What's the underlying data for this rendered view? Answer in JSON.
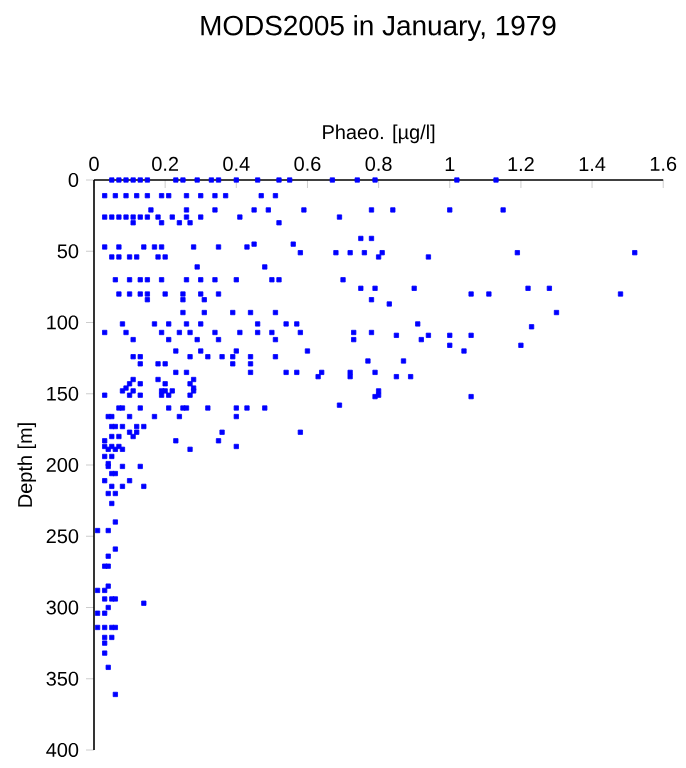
{
  "chart_data": {
    "type": "scatter",
    "title": "MODS2005 in January, 1979",
    "xlabel": "Phaeo. [µg/l]",
    "ylabel": "Depth [m]",
    "xlim": [
      0,
      1.6
    ],
    "ylim": [
      400,
      0
    ],
    "xticks": [
      0,
      0.2,
      0.4,
      0.6,
      0.8,
      1,
      1.2,
      1.4,
      1.6
    ],
    "yticks": [
      0,
      50,
      100,
      150,
      200,
      250,
      300,
      350,
      400
    ],
    "marker": "square",
    "color": "#0000ff",
    "x": [
      0.05,
      0.07,
      0.09,
      0.11,
      0.13,
      0.15,
      0.23,
      0.25,
      0.29,
      0.33,
      0.35,
      0.4,
      0.46,
      0.52,
      0.55,
      0.67,
      0.74,
      0.79,
      1.02,
      1.13,
      0.03,
      0.06,
      0.09,
      0.12,
      0.15,
      0.19,
      0.21,
      0.26,
      0.3,
      0.34,
      0.37,
      0.47,
      0.51,
      0.16,
      0.26,
      0.34,
      0.45,
      0.49,
      0.59,
      0.78,
      0.84,
      1.0,
      1.15,
      0.03,
      0.05,
      0.07,
      0.09,
      0.11,
      0.13,
      0.15,
      0.18,
      0.22,
      0.26,
      0.3,
      0.41,
      0.69,
      0.11,
      0.19,
      0.24,
      0.27,
      0.52,
      0.75,
      0.78,
      0.45,
      0.56,
      0.03,
      0.07,
      0.14,
      0.17,
      0.19,
      0.28,
      0.35,
      0.43,
      0.58,
      0.68,
      0.72,
      0.76,
      0.81,
      1.19,
      1.52,
      0.05,
      0.07,
      0.1,
      0.12,
      0.18,
      0.2,
      0.8,
      0.94,
      0.29,
      0.48,
      0.06,
      0.1,
      0.13,
      0.15,
      0.19,
      0.26,
      0.3,
      0.34,
      0.4,
      0.5,
      0.52,
      0.7,
      0.75,
      0.79,
      0.9,
      1.22,
      1.28,
      0.07,
      0.1,
      0.13,
      0.15,
      0.2,
      0.25,
      0.3,
      0.35,
      1.06,
      1.11,
      1.48,
      0.15,
      0.25,
      0.31,
      0.78,
      0.83,
      0.25,
      0.31,
      0.39,
      0.44,
      0.51,
      1.3,
      0.08,
      0.17,
      0.21,
      0.26,
      0.3,
      0.46,
      0.54,
      0.57,
      0.91,
      1.23,
      0.03,
      0.09,
      0.19,
      0.24,
      0.27,
      0.34,
      0.41,
      0.46,
      0.5,
      0.58,
      0.73,
      0.78,
      0.85,
      0.94,
      1.0,
      1.06,
      0.11,
      0.21,
      0.29,
      0.35,
      0.51,
      0.73,
      0.92,
      1.0,
      1.2,
      0.23,
      0.3,
      0.4,
      0.6,
      1.04,
      0.11,
      0.13,
      0.27,
      0.32,
      0.36,
      0.39,
      0.44,
      0.51,
      0.77,
      0.87,
      0.13,
      0.18,
      0.2,
      0.39,
      0.44,
      0.23,
      0.26,
      0.44,
      0.54,
      0.57,
      0.64,
      0.72,
      0.79,
      0.63,
      0.72,
      0.85,
      0.89,
      0.11,
      0.18,
      0.28,
      0.08,
      0.11,
      0.19,
      0.2,
      0.22,
      0.28,
      0.8,
      0.79,
      1.06,
      0.1,
      0.13,
      0.2,
      0.27,
      0.09,
      0.28,
      0.03,
      0.1,
      0.13,
      0.19,
      0.21,
      0.27,
      0.8,
      0.69,
      0.07,
      0.08,
      0.13,
      0.21,
      0.25,
      0.26,
      0.32,
      0.4,
      0.43,
      0.48,
      0.04,
      0.05,
      0.1,
      0.17,
      0.24,
      0.4,
      0.05,
      0.06,
      0.08,
      0.12,
      0.14,
      0.1,
      0.12,
      0.36,
      0.58,
      0.05,
      0.07,
      0.11,
      0.03,
      0.23,
      0.35,
      0.03,
      0.05,
      0.07,
      0.4,
      0.04,
      0.06,
      0.08,
      0.27,
      0.03,
      0.05,
      0.04,
      0.04,
      0.08,
      0.13,
      0.05,
      0.06,
      0.03,
      0.1,
      0.05,
      0.08,
      0.14,
      0.04,
      0.06,
      0.05,
      0.06,
      0.01,
      0.04,
      0.06,
      0.04,
      0.03,
      0.04,
      0.04,
      0.01,
      0.03,
      0.03,
      0.05,
      0.06,
      0.14,
      0.04,
      0.01,
      0.03,
      0.01,
      0.03,
      0.05,
      0.06,
      0.03,
      0.05,
      0.03,
      0.03,
      0.04,
      0.06
    ],
    "values": [
      0,
      0,
      0,
      0,
      0,
      0,
      0,
      0,
      0,
      0,
      0,
      0,
      0,
      0,
      0,
      0,
      0,
      0,
      0,
      0,
      11,
      11,
      11,
      11,
      11,
      11,
      11,
      11,
      11,
      11,
      11,
      11,
      11,
      21,
      21,
      21,
      21,
      21,
      21,
      21,
      21,
      21,
      21,
      26,
      26,
      26,
      26,
      26,
      26,
      26,
      26,
      26,
      26,
      26,
      26,
      26,
      30,
      30,
      30,
      30,
      30,
      41,
      41,
      45,
      45,
      47,
      47,
      47,
      47,
      47,
      47,
      47,
      47,
      51,
      51,
      51,
      51,
      51,
      51,
      51,
      54,
      54,
      54,
      54,
      54,
      54,
      54,
      54,
      61,
      61,
      70,
      70,
      70,
      70,
      70,
      70,
      70,
      70,
      70,
      70,
      70,
      70,
      76,
      76,
      76,
      76,
      76,
      80,
      80,
      80,
      80,
      80,
      80,
      80,
      80,
      80,
      80,
      80,
      84,
      84,
      84,
      84,
      87,
      93,
      93,
      93,
      93,
      93,
      93,
      101,
      101,
      101,
      101,
      101,
      101,
      101,
      101,
      101,
      103,
      107,
      107,
      107,
      107,
      107,
      107,
      107,
      107,
      107,
      107,
      107,
      107,
      109,
      109,
      109,
      109,
      112,
      112,
      112,
      112,
      112,
      112,
      112,
      116,
      116,
      120,
      120,
      120,
      120,
      120,
      124,
      124,
      124,
      124,
      124,
      124,
      124,
      124,
      127,
      127,
      129,
      129,
      129,
      129,
      129,
      135,
      135,
      135,
      135,
      135,
      135,
      135,
      135,
      138,
      138,
      138,
      138,
      140,
      140,
      140,
      148,
      148,
      148,
      148,
      148,
      148,
      148,
      152,
      152,
      143,
      143,
      143,
      143,
      146,
      146,
      151,
      151,
      151,
      151,
      151,
      151,
      151,
      158,
      160,
      160,
      160,
      160,
      160,
      160,
      160,
      160,
      160,
      160,
      166,
      166,
      166,
      166,
      166,
      166,
      173,
      173,
      173,
      173,
      173,
      177,
      177,
      177,
      177,
      180,
      180,
      180,
      183,
      183,
      183,
      187,
      187,
      187,
      187,
      189,
      189,
      189,
      189,
      194,
      194,
      199,
      201,
      201,
      201,
      206,
      206,
      211,
      211,
      215,
      215,
      215,
      220,
      220,
      227,
      240,
      246,
      246,
      259,
      264,
      271,
      271,
      285,
      288,
      288,
      294,
      294,
      294,
      297,
      300,
      304,
      304,
      314,
      314,
      314,
      314,
      321,
      321,
      325,
      332,
      342,
      361
    ]
  }
}
